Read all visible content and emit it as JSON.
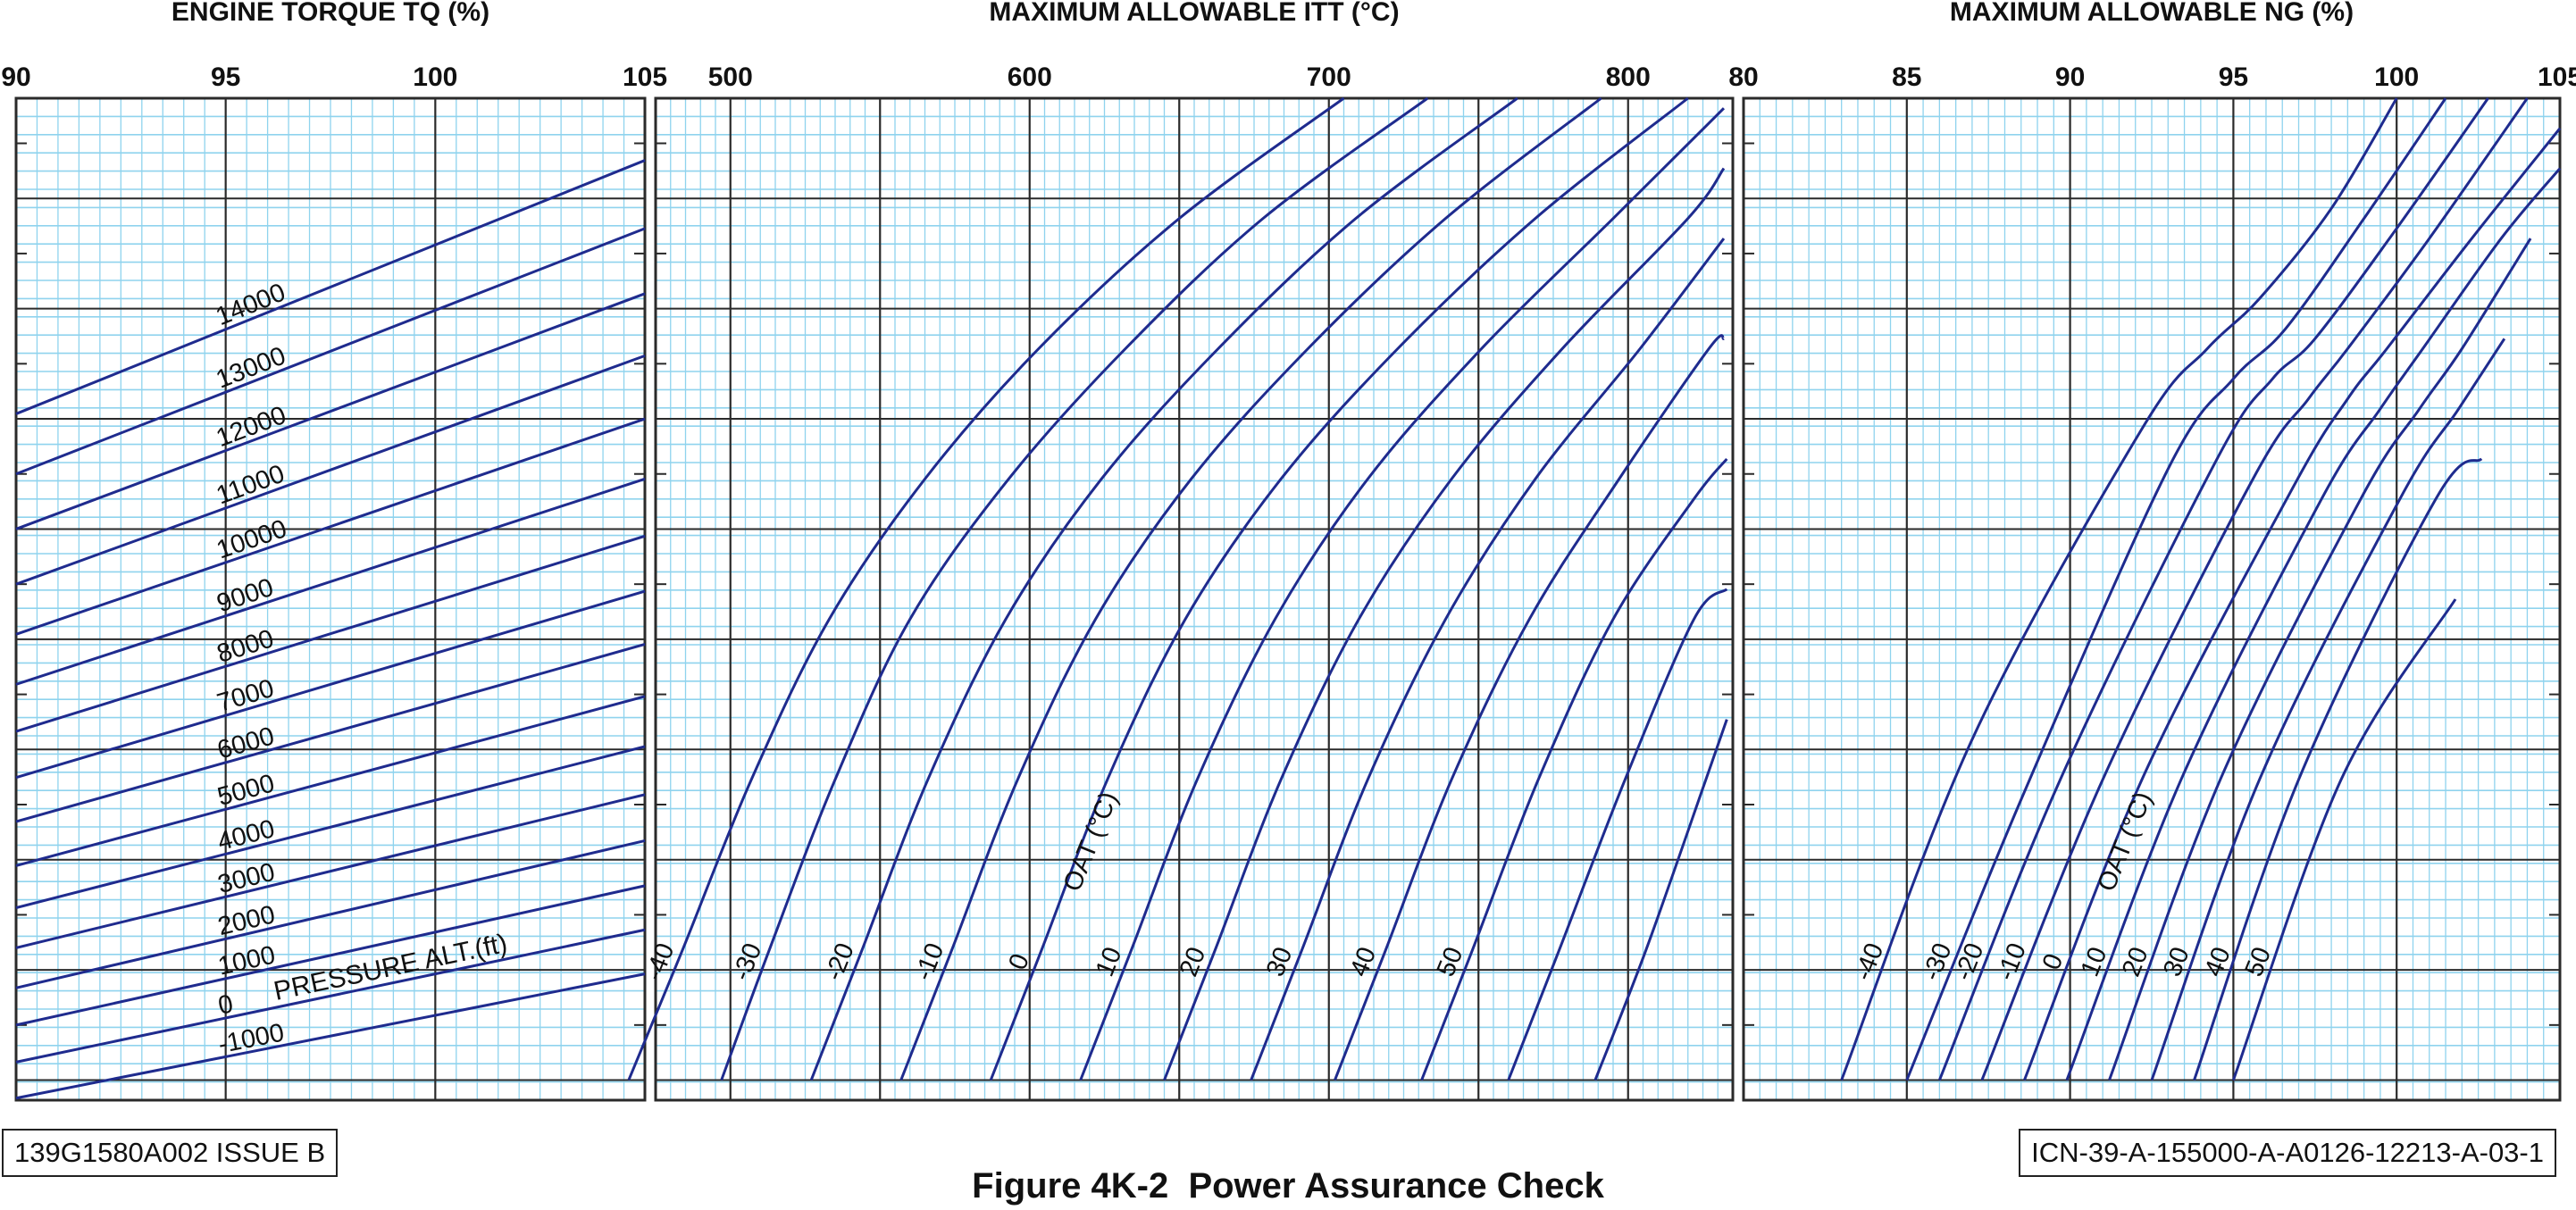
{
  "figure": {
    "caption": "Figure 4K-2  Power Assurance Check",
    "doc_id": "139G1580A002 ISSUE B",
    "icn_id": "ICN-39-A-155000-A-A0126-12213-A-03-1"
  },
  "colors": {
    "curve": "#1f2b8e",
    "fine_grid": "#8fd3ee",
    "major_grid": "#2a2a2a",
    "text": "#111111"
  },
  "chart_data": [
    {
      "type": "line",
      "title": "ENGINE TORQUE TQ (%)",
      "xlim": [
        90,
        105
      ],
      "x_ticks": [
        90,
        95,
        100,
        105
      ],
      "family_label": "PRESSURE ALT.(ft)",
      "series": [
        {
          "name": "14000",
          "x": [
            90,
            105
          ],
          "y": [
            0.685,
            0.938
          ]
        },
        {
          "name": "13000",
          "x": [
            90,
            105
          ],
          "y": [
            0.625,
            0.87
          ]
        },
        {
          "name": "12000",
          "x": [
            90,
            105
          ],
          "y": [
            0.57,
            0.805
          ]
        },
        {
          "name": "11000",
          "x": [
            90,
            105
          ],
          "y": [
            0.515,
            0.743
          ]
        },
        {
          "name": "10000",
          "x": [
            90,
            105
          ],
          "y": [
            0.465,
            0.68
          ]
        },
        {
          "name": "9000",
          "x": [
            90,
            105
          ],
          "y": [
            0.415,
            0.62
          ]
        },
        {
          "name": "8000",
          "x": [
            90,
            105
          ],
          "y": [
            0.368,
            0.563
          ]
        },
        {
          "name": "7000",
          "x": [
            90,
            105
          ],
          "y": [
            0.322,
            0.508
          ]
        },
        {
          "name": "6000",
          "x": [
            90,
            105
          ],
          "y": [
            0.278,
            0.455
          ]
        },
        {
          "name": "5000",
          "x": [
            90,
            105
          ],
          "y": [
            0.234,
            0.403
          ]
        },
        {
          "name": "4000",
          "x": [
            90,
            105
          ],
          "y": [
            0.192,
            0.353
          ]
        },
        {
          "name": "3000",
          "x": [
            90,
            105
          ],
          "y": [
            0.152,
            0.305
          ]
        },
        {
          "name": "2000",
          "x": [
            90,
            105
          ],
          "y": [
            0.112,
            0.259
          ]
        },
        {
          "name": "1000",
          "x": [
            90,
            105
          ],
          "y": [
            0.075,
            0.214
          ]
        },
        {
          "name": "0",
          "x": [
            90,
            105
          ],
          "y": [
            0.038,
            0.17
          ]
        },
        {
          "name": "-1000",
          "x": [
            90,
            105
          ],
          "y": [
            0.002,
            0.126
          ]
        }
      ]
    },
    {
      "type": "line",
      "title": "MAXIMUM ALLOWABLE ITT (°C)",
      "xlim": [
        475,
        835
      ],
      "x_ticks": [
        500,
        600,
        700,
        800
      ],
      "family_label": "OAT (°C)",
      "series": [
        {
          "name": "-40",
          "x": [
            466,
            484,
            507,
            533,
            565,
            603,
            650,
            705
          ],
          "y": [
            0.02,
            0.15,
            0.32,
            0.48,
            0.62,
            0.75,
            0.88,
            1.0
          ]
        },
        {
          "name": "-30",
          "x": [
            497,
            513,
            535,
            560,
            593,
            632,
            678,
            733
          ],
          "y": [
            0.02,
            0.15,
            0.32,
            0.48,
            0.62,
            0.75,
            0.88,
            1.0
          ]
        },
        {
          "name": "-20",
          "x": [
            527,
            544,
            566,
            592,
            624,
            663,
            709,
            763
          ],
          "y": [
            0.02,
            0.15,
            0.32,
            0.48,
            0.62,
            0.75,
            0.88,
            1.0
          ]
        },
        {
          "name": "-10",
          "x": [
            557,
            574,
            596,
            622,
            654,
            693,
            739,
            791
          ],
          "y": [
            0.02,
            0.15,
            0.32,
            0.48,
            0.62,
            0.75,
            0.88,
            1.0
          ]
        },
        {
          "name": "0",
          "x": [
            587,
            604,
            626,
            652,
            684,
            723,
            769,
            820
          ],
          "y": [
            0.02,
            0.15,
            0.32,
            0.48,
            0.62,
            0.75,
            0.88,
            1.0
          ]
        },
        {
          "name": "10",
          "x": [
            617,
            634,
            656,
            682,
            713,
            751,
            795,
            832
          ],
          "y": [
            0.02,
            0.15,
            0.32,
            0.48,
            0.62,
            0.75,
            0.88,
            0.99
          ]
        },
        {
          "name": "20",
          "x": [
            645,
            662,
            684,
            710,
            741,
            778,
            820,
            832
          ],
          "y": [
            0.02,
            0.15,
            0.32,
            0.48,
            0.62,
            0.75,
            0.88,
            0.93
          ]
        },
        {
          "name": "30",
          "x": [
            674,
            691,
            713,
            739,
            769,
            804,
            832
          ],
          "y": [
            0.02,
            0.15,
            0.32,
            0.48,
            0.62,
            0.75,
            0.86
          ]
        },
        {
          "name": "40",
          "x": [
            702,
            719,
            741,
            767,
            797,
            827,
            832
          ],
          "y": [
            0.02,
            0.15,
            0.32,
            0.48,
            0.62,
            0.75,
            0.76
          ]
        },
        {
          "name": "50",
          "x": [
            731,
            748,
            770,
            795,
            822,
            833
          ],
          "y": [
            0.02,
            0.15,
            0.32,
            0.48,
            0.6,
            0.64
          ]
        },
        {
          "name": "",
          "x": [
            760,
            777,
            799,
            822,
            833
          ],
          "y": [
            0.02,
            0.15,
            0.32,
            0.48,
            0.51
          ]
        },
        {
          "name": "",
          "x": [
            789,
            806,
            826,
            833
          ],
          "y": [
            0.02,
            0.15,
            0.32,
            0.38
          ]
        }
      ]
    },
    {
      "type": "line",
      "title": "MAXIMUM ALLOWABLE NG (%)",
      "xlim": [
        80,
        105
      ],
      "x_ticks": [
        80,
        85,
        90,
        95,
        100,
        105
      ],
      "family_label": "OAT (°C)",
      "series": [
        {
          "name": "-40",
          "x": [
            83.0,
            87.0,
            92.2,
            94.2,
            95.8,
            98.0,
            100.0
          ],
          "y": [
            0.02,
            0.36,
            0.67,
            0.75,
            0.8,
            0.89,
            1.0
          ]
        },
        {
          "name": "-30",
          "x": [
            85.0,
            88.5,
            93.0,
            95.0,
            96.6,
            99.0,
            101.5
          ],
          "y": [
            0.02,
            0.3,
            0.63,
            0.72,
            0.77,
            0.88,
            1.0
          ]
        },
        {
          "name": "-20",
          "x": [
            86.0,
            89.7,
            94.5,
            96.2,
            97.5,
            100.0,
            102.8
          ],
          "y": [
            0.02,
            0.32,
            0.64,
            0.72,
            0.76,
            0.87,
            1.0
          ]
        },
        {
          "name": "-10",
          "x": [
            87.3,
            91.0,
            95.6,
            97.3,
            98.5,
            101.0,
            104.0
          ],
          "y": [
            0.02,
            0.32,
            0.62,
            0.7,
            0.75,
            0.86,
            1.0
          ]
        },
        {
          "name": "0",
          "x": [
            88.6,
            92.2,
            96.8,
            98.5,
            99.7,
            102.3,
            105.0
          ],
          "y": [
            0.02,
            0.32,
            0.61,
            0.7,
            0.75,
            0.86,
            0.97
          ]
        },
        {
          "name": "10",
          "x": [
            89.9,
            93.4,
            97.7,
            99.5,
            100.8,
            103.2,
            105.0
          ],
          "y": [
            0.02,
            0.32,
            0.6,
            0.69,
            0.75,
            0.86,
            0.93
          ]
        },
        {
          "name": "20",
          "x": [
            91.2,
            94.6,
            98.9,
            100.7,
            102.0,
            104.1
          ],
          "y": [
            0.02,
            0.32,
            0.6,
            0.69,
            0.75,
            0.86
          ]
        },
        {
          "name": "30",
          "x": [
            92.5,
            95.8,
            100.1,
            101.9,
            103.3
          ],
          "y": [
            0.02,
            0.32,
            0.6,
            0.69,
            0.76
          ]
        },
        {
          "name": "40",
          "x": [
            93.8,
            97.0,
            101.2,
            102.6
          ],
          "y": [
            0.02,
            0.32,
            0.6,
            0.64
          ]
        },
        {
          "name": "50",
          "x": [
            95.0,
            98.3,
            101.8
          ],
          "y": [
            0.02,
            0.32,
            0.5
          ]
        }
      ]
    }
  ]
}
